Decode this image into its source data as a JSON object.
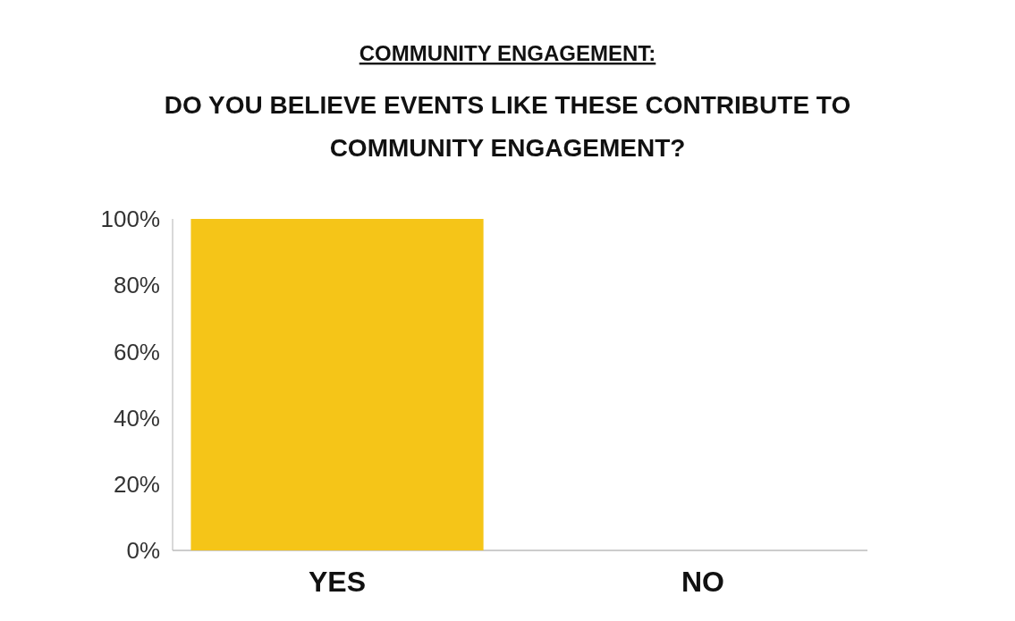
{
  "chart_data": {
    "type": "bar",
    "title": "COMMUNITY ENGAGEMENT:",
    "subtitle": "DO YOU BELIEVE EVENTS LIKE THESE CONTRIBUTE TO COMMUNITY ENGAGEMENT?",
    "categories": [
      "YES",
      "NO"
    ],
    "values": [
      100,
      0
    ],
    "colors": [
      "#f5c518",
      "#d40000"
    ],
    "ylim": [
      0,
      100
    ],
    "yticks": [
      {
        "value": 0,
        "label": "0%"
      },
      {
        "value": 20,
        "label": "20%"
      },
      {
        "value": 40,
        "label": "40%"
      },
      {
        "value": 60,
        "label": "60%"
      },
      {
        "value": 80,
        "label": "80%"
      },
      {
        "value": 100,
        "label": "100%"
      }
    ],
    "grid": false
  }
}
